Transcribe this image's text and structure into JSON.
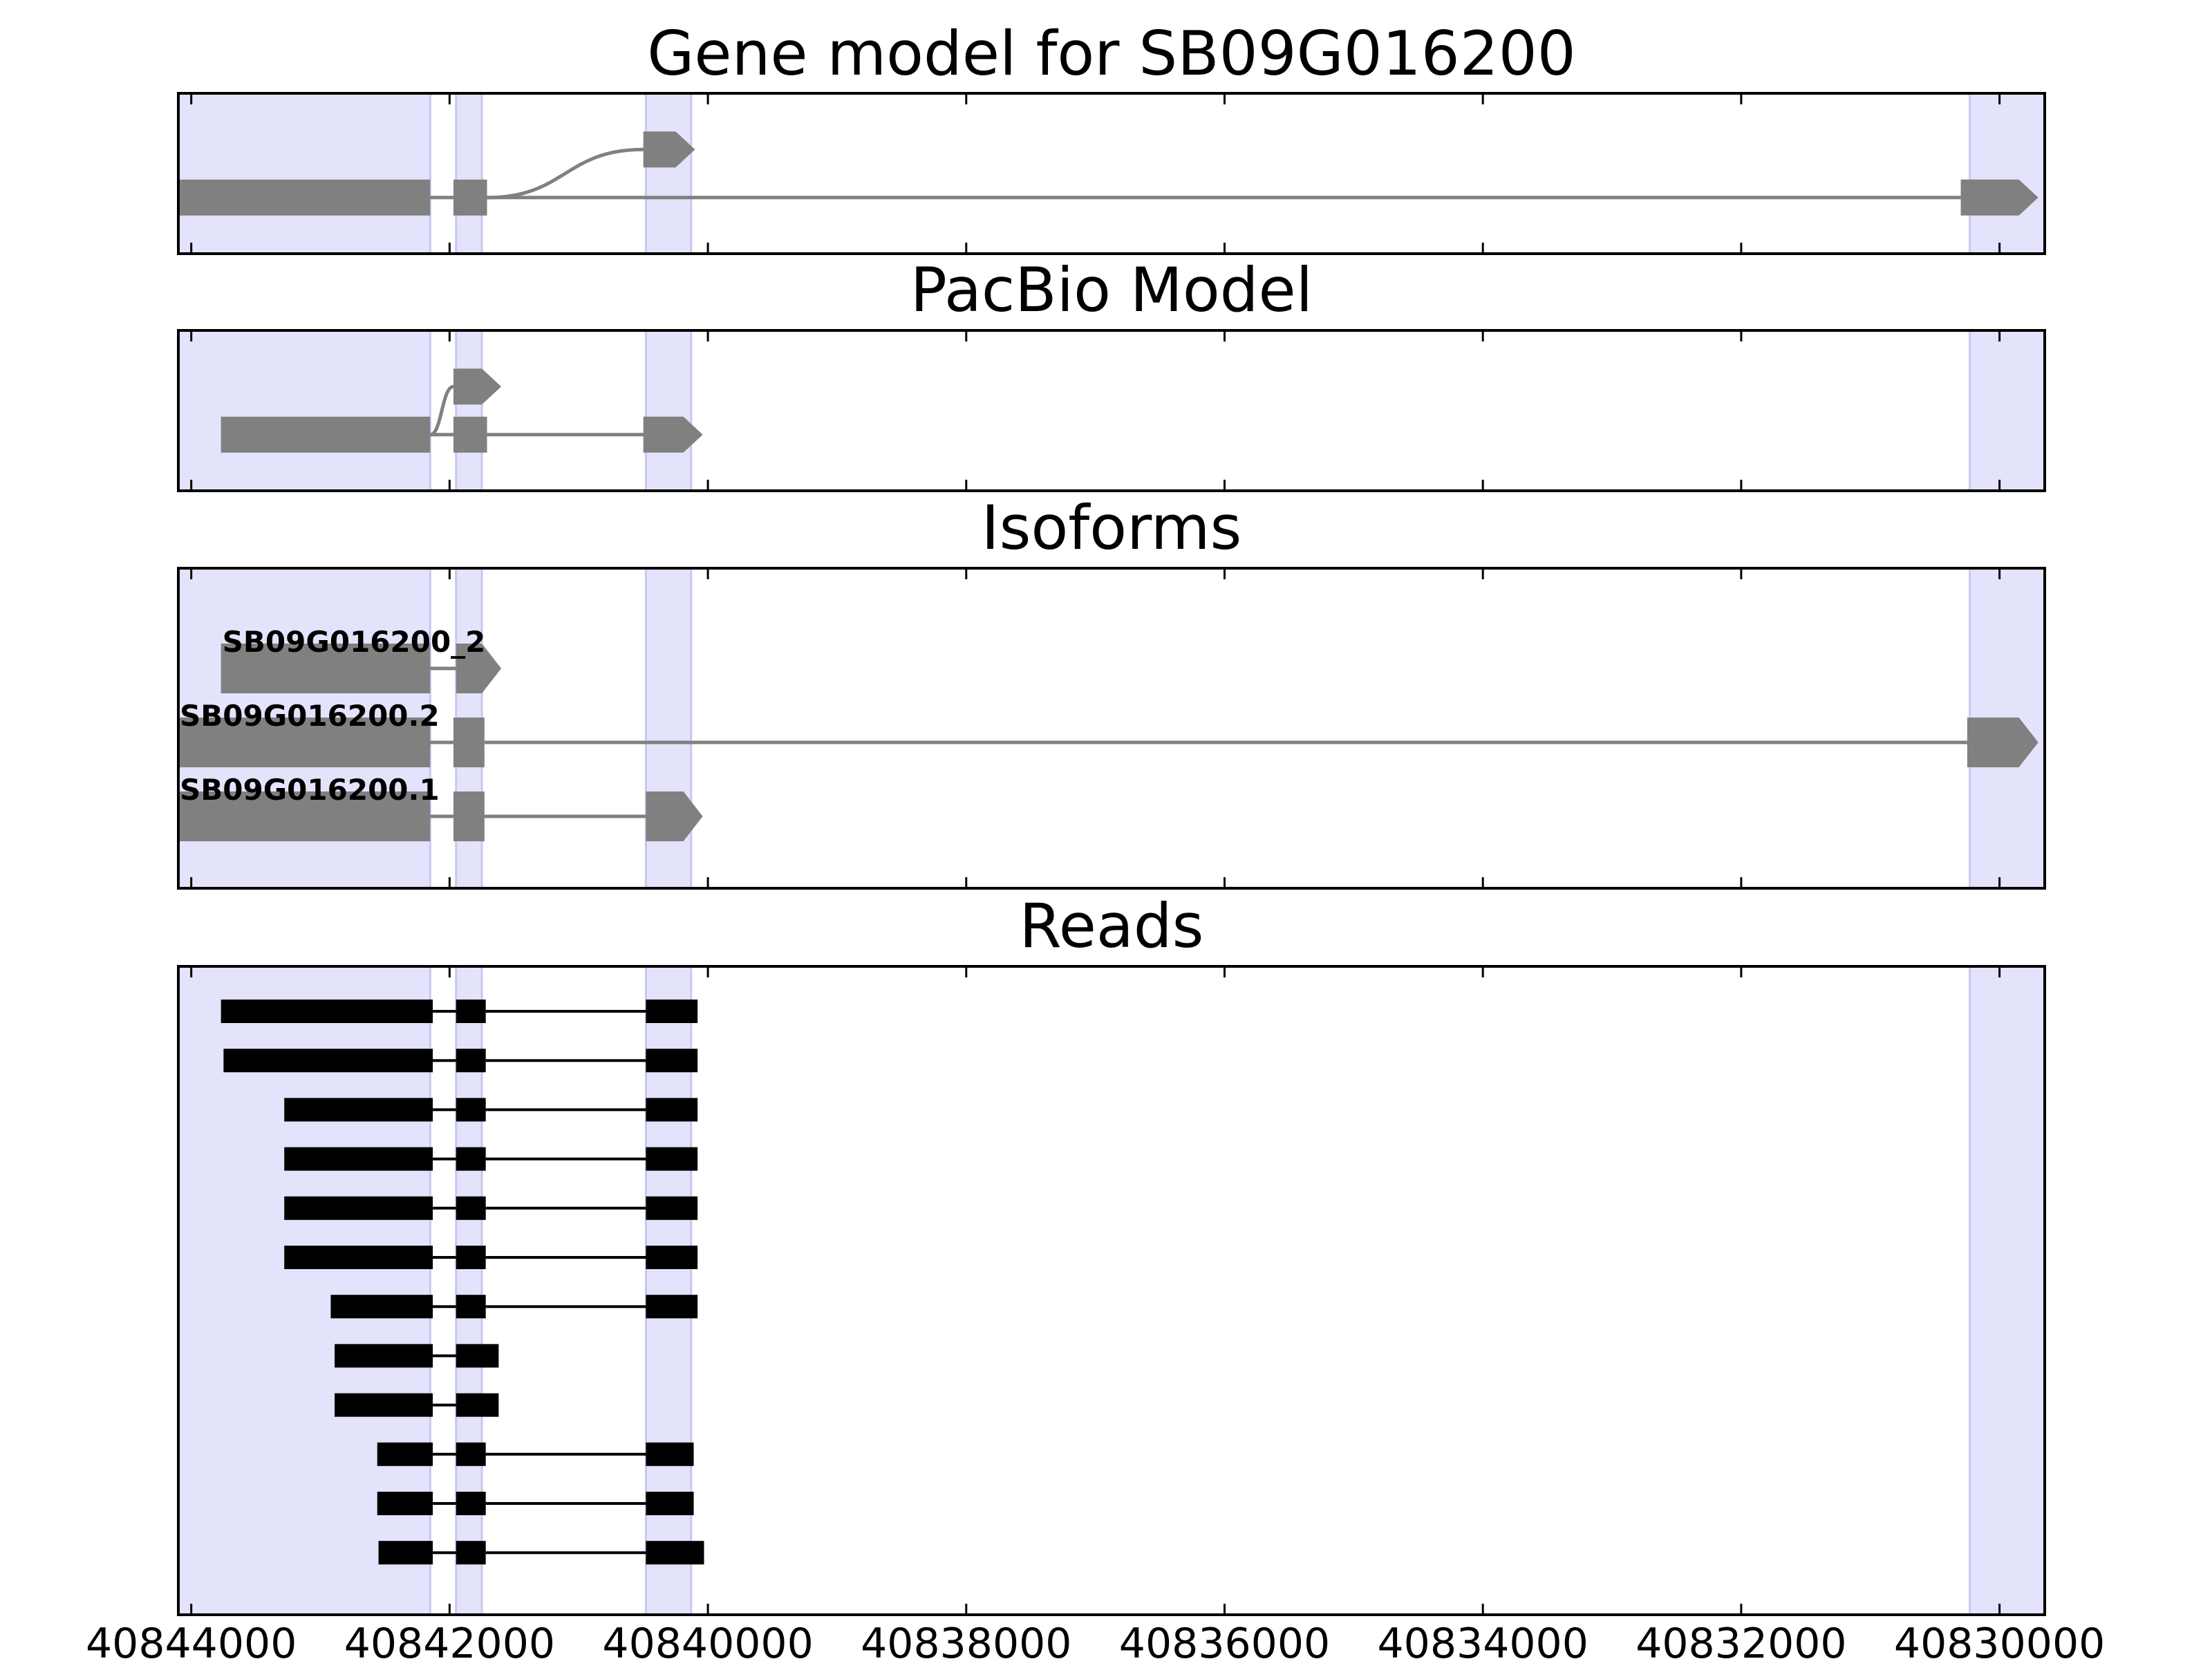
{
  "colors": {
    "highlight": "#e3e3fb",
    "highlight_edge": "#c8c8f0",
    "gene_feature": "#808080",
    "read_feature": "#000000",
    "axis": "#000000"
  },
  "x_axis": {
    "range": [
      40844100,
      40829650
    ],
    "reversed": true,
    "ticks": [
      40844000,
      40842000,
      40840000,
      40838000,
      40836000,
      40834000,
      40832000,
      40830000
    ],
    "tick_labels": [
      "40844000",
      "40842000",
      "40840000",
      "40838000",
      "40836000",
      "40834000",
      "40832000",
      "40830000"
    ]
  },
  "highlight_regions": [
    [
      40844100,
      40842150
    ],
    [
      40841950,
      40841750
    ],
    [
      40840480,
      40840130
    ],
    [
      40830230,
      40829650
    ]
  ],
  "chart_data": [
    {
      "type": "gene-track",
      "title": "Gene model for SB09G016200",
      "lanes": 2,
      "transcripts": [
        {
          "lane": 0,
          "exons": [
            [
              40844100,
              40842150
            ],
            [
              40841970,
              40841710
            ],
            [
              40830300,
              40829700
            ]
          ],
          "arrow": true
        },
        {
          "lane": 1,
          "exons": [
            [
              40840500,
              40840100
            ]
          ],
          "arrow": true,
          "branch_from": 40841710
        }
      ]
    },
    {
      "type": "gene-track",
      "title": "PacBio Model",
      "lanes": 2,
      "transcripts": [
        {
          "lane": 0,
          "exons": [
            [
              40843770,
              40842150
            ],
            [
              40841970,
              40841710
            ],
            [
              40840500,
              40840040
            ]
          ],
          "arrow": true
        },
        {
          "lane": 1,
          "exons": [
            [
              40841970,
              40841600
            ]
          ],
          "arrow": true,
          "branch_from": 40842150
        }
      ]
    },
    {
      "type": "gene-track",
      "title": "Isoforms",
      "transcripts": [
        {
          "label": "SB09G016200_2",
          "exons": [
            [
              40843770,
              40842150
            ],
            [
              40841950,
              40841600
            ]
          ],
          "arrow": true
        },
        {
          "label": "SB09G016200.2",
          "exons": [
            [
              40844100,
              40842150
            ],
            [
              40841970,
              40841730
            ],
            [
              40830250,
              40829700
            ]
          ],
          "arrow": true
        },
        {
          "label": "SB09G016200.1",
          "exons": [
            [
              40844100,
              40842150
            ],
            [
              40841970,
              40841730
            ],
            [
              40840480,
              40840040
            ]
          ],
          "arrow": true
        }
      ]
    },
    {
      "type": "read-track",
      "title": "Reads",
      "reads": [
        [
          [
            40843770,
            40842130
          ],
          [
            40841950,
            40841720
          ],
          [
            40840480,
            40840080
          ]
        ],
        [
          [
            40843750,
            40842130
          ],
          [
            40841950,
            40841720
          ],
          [
            40840480,
            40840080
          ]
        ],
        [
          [
            40843280,
            40842130
          ],
          [
            40841950,
            40841720
          ],
          [
            40840480,
            40840080
          ]
        ],
        [
          [
            40843280,
            40842130
          ],
          [
            40841950,
            40841720
          ],
          [
            40840480,
            40840080
          ]
        ],
        [
          [
            40843280,
            40842130
          ],
          [
            40841950,
            40841720
          ],
          [
            40840480,
            40840080
          ]
        ],
        [
          [
            40843280,
            40842130
          ],
          [
            40841950,
            40841720
          ],
          [
            40840480,
            40840080
          ]
        ],
        [
          [
            40842920,
            40842130
          ],
          [
            40841950,
            40841720
          ],
          [
            40840480,
            40840080
          ]
        ],
        [
          [
            40842890,
            40842130
          ],
          [
            40841950,
            40841620
          ]
        ],
        [
          [
            40842890,
            40842130
          ],
          [
            40841950,
            40841620
          ]
        ],
        [
          [
            40842560,
            40842130
          ],
          [
            40841950,
            40841720
          ],
          [
            40840480,
            40840110
          ]
        ],
        [
          [
            40842560,
            40842130
          ],
          [
            40841950,
            40841720
          ],
          [
            40840480,
            40840110
          ]
        ],
        [
          [
            40842550,
            40842130
          ],
          [
            40841950,
            40841720
          ],
          [
            40840480,
            40840030
          ]
        ]
      ]
    }
  ]
}
